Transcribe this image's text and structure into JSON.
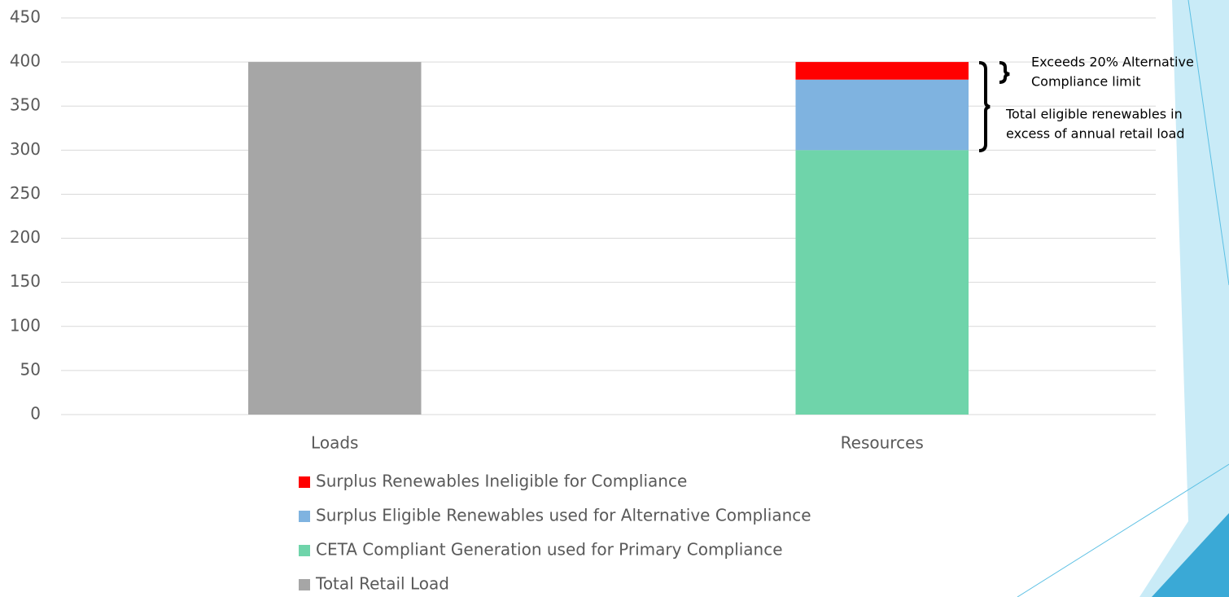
{
  "chart_data": {
    "type": "stacked_bar",
    "categories": [
      "Loads",
      "Resources"
    ],
    "series": [
      {
        "name": "Total Retail Load",
        "color": "#a6a6a6",
        "values": [
          400,
          null
        ]
      },
      {
        "name": "CETA Compliant Generation used for Primary Compliance",
        "color": "#6fd4aa",
        "values": [
          null,
          300
        ]
      },
      {
        "name": "Surplus Eligible Renewables used for Alternative Compliance",
        "color": "#7fb3e0",
        "values": [
          null,
          80
        ]
      },
      {
        "name": "Surplus Renewables Ineligible for Compliance",
        "color": "#ff0000",
        "values": [
          null,
          20
        ]
      }
    ],
    "ylim": [
      0,
      450
    ],
    "yticks": [
      0,
      50,
      100,
      150,
      200,
      250,
      300,
      350,
      400,
      450
    ],
    "grid": true,
    "annotations": [
      [
        "Exceeds 20% Alternative",
        "Compliance limit"
      ],
      [
        "Total eligible renewables in",
        "excess of annual retail load"
      ]
    ]
  }
}
